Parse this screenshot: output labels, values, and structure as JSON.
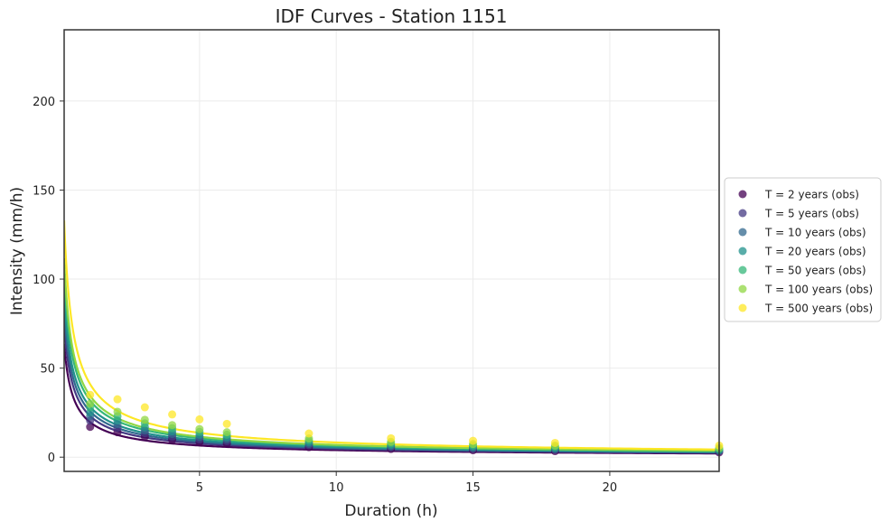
{
  "chart_data": {
    "type": "line",
    "title": "IDF Curves - Station 1151",
    "xlabel": "Duration (h)",
    "ylabel": "Intensity (mm/h)",
    "xlim": [
      0.05,
      24
    ],
    "ylim": [
      -8,
      240
    ],
    "xticks": [
      5,
      10,
      15,
      20
    ],
    "yticks": [
      0,
      50,
      100,
      150,
      200
    ],
    "grid": true,
    "legend_position": "center-right, outside plot",
    "durations_obs": [
      1,
      2,
      3,
      4,
      5,
      6,
      9,
      12,
      15,
      18,
      24
    ],
    "series": [
      {
        "name": "T = 2 years (obs)",
        "color": "#440154",
        "obs_intensity": [
          17,
          14,
          11.5,
          9.8,
          8.5,
          7.6,
          5.6,
          4.6,
          3.9,
          3.4,
          2.7
        ],
        "fit_curve": {
          "a": 22.5,
          "b": 0.2,
          "n": 0.75
        }
      },
      {
        "name": "T = 5 years (obs)",
        "color": "#443983",
        "obs_intensity": [
          20.5,
          16.5,
          13.5,
          11.5,
          10,
          9,
          6.7,
          5.5,
          4.7,
          4.1,
          3.3
        ],
        "fit_curve": {
          "a": 26.5,
          "b": 0.2,
          "n": 0.75
        }
      },
      {
        "name": "T = 10 years (obs)",
        "color": "#31688e",
        "obs_intensity": [
          23,
          18.5,
          15,
          13,
          11.3,
          10.1,
          7.5,
          6.1,
          5.2,
          4.6,
          3.7
        ],
        "fit_curve": {
          "a": 29.5,
          "b": 0.2,
          "n": 0.75
        }
      },
      {
        "name": "T = 20 years (obs)",
        "color": "#21918c",
        "obs_intensity": [
          25,
          20.5,
          16.8,
          14.5,
          12.6,
          11.2,
          8.3,
          6.8,
          5.8,
          5.1,
          4.1
        ],
        "fit_curve": {
          "a": 32.5,
          "b": 0.2,
          "n": 0.75
        }
      },
      {
        "name": "T = 50 years (obs)",
        "color": "#35b779",
        "obs_intensity": [
          28,
          23,
          19,
          16.3,
          14.2,
          12.6,
          9.4,
          7.7,
          6.6,
          5.8,
          4.6
        ],
        "fit_curve": {
          "a": 36.5,
          "b": 0.2,
          "n": 0.75
        }
      },
      {
        "name": "T = 100 years (obs)",
        "color": "#90d743",
        "obs_intensity": [
          30,
          25.5,
          21,
          18,
          15.8,
          14,
          10.5,
          8.6,
          7.4,
          6.5,
          5.2
        ],
        "fit_curve": {
          "a": 39.5,
          "b": 0.2,
          "n": 0.75
        }
      },
      {
        "name": "T = 500 years (obs)",
        "color": "#fde725",
        "obs_intensity": [
          35,
          32.5,
          28,
          24,
          21.2,
          18.7,
          13.3,
          10.6,
          9.2,
          8,
          6.5
        ],
        "fit_curve": {
          "a": 47,
          "b": 0.2,
          "n": 0.75
        }
      }
    ]
  }
}
